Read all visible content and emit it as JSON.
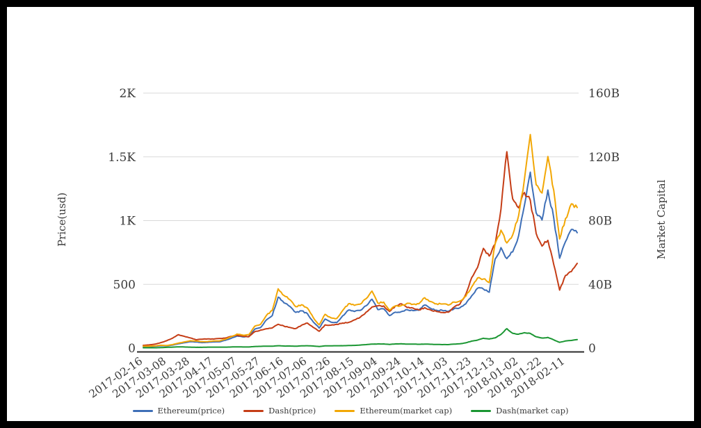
{
  "chart_data": {
    "type": "line",
    "title": "",
    "x_axis": {
      "tick_labels": [
        "2017-02-16",
        "2017-03-08",
        "2017-03-28",
        "2017-04-17",
        "2017-05-07",
        "2017-05-27",
        "2017-06-16",
        "2017-07-06",
        "2017-07-26",
        "2017-08-15",
        "2017-09-04",
        "2017-09-24",
        "2017-10-14",
        "2017-11-03",
        "2017-11-23",
        "2017-12-13",
        "2018-01-02",
        "2018-01-22",
        "2018-02-11"
      ],
      "label_rotation_deg": -35
    },
    "y_axis_left": {
      "label": "Price(usd)",
      "tick_values": [
        0,
        500,
        1000,
        1500,
        2000
      ],
      "tick_labels": [
        "0",
        "500",
        "1K",
        "1.5K",
        "2K"
      ],
      "range": [
        0,
        2000
      ]
    },
    "y_axis_right": {
      "label": "Market Capital",
      "tick_values": [
        0,
        40,
        80,
        120,
        160
      ],
      "tick_labels": [
        "0",
        "40B",
        "80B",
        "120B",
        "160B"
      ],
      "range": [
        0,
        160
      ]
    },
    "grid": true,
    "grid_color": "#d9d9d9",
    "axis_line_color": "#2b2b2b",
    "legend_position": "bottom",
    "dates": [
      "2017-02-16",
      "2017-02-21",
      "2017-02-26",
      "2017-03-03",
      "2017-03-08",
      "2017-03-13",
      "2017-03-18",
      "2017-03-23",
      "2017-03-28",
      "2017-04-02",
      "2017-04-07",
      "2017-04-12",
      "2017-04-17",
      "2017-04-22",
      "2017-04-27",
      "2017-05-02",
      "2017-05-07",
      "2017-05-12",
      "2017-05-17",
      "2017-05-22",
      "2017-05-27",
      "2017-06-01",
      "2017-06-06",
      "2017-06-11",
      "2017-06-16",
      "2017-06-21",
      "2017-06-26",
      "2017-07-01",
      "2017-07-06",
      "2017-07-11",
      "2017-07-16",
      "2017-07-21",
      "2017-07-26",
      "2017-07-31",
      "2017-08-05",
      "2017-08-10",
      "2017-08-15",
      "2017-08-20",
      "2017-08-25",
      "2017-08-30",
      "2017-09-04",
      "2017-09-09",
      "2017-09-14",
      "2017-09-19",
      "2017-09-24",
      "2017-09-29",
      "2017-10-04",
      "2017-10-09",
      "2017-10-14",
      "2017-10-19",
      "2017-10-24",
      "2017-10-29",
      "2017-11-03",
      "2017-11-08",
      "2017-11-13",
      "2017-11-18",
      "2017-11-23",
      "2017-11-28",
      "2017-12-03",
      "2017-12-08",
      "2017-12-13",
      "2017-12-18",
      "2017-12-23",
      "2017-12-28",
      "2018-01-02",
      "2018-01-07",
      "2018-01-12",
      "2018-01-17",
      "2018-01-22",
      "2018-01-27",
      "2018-02-01",
      "2018-02-06",
      "2018-02-11",
      "2018-02-16",
      "2018-02-21"
    ],
    "series": [
      {
        "name": "Ethereum(price)",
        "axis": "left",
        "color": "#3e6fb7",
        "values": [
          13,
          12.6,
          14.8,
          19,
          17.5,
          24,
          34,
          42,
          50,
          48,
          43,
          45,
          49,
          49,
          61,
          77,
          95,
          88,
          91,
          148,
          161,
          221,
          255,
          400,
          355,
          327,
          280,
          292,
          270,
          205,
          157,
          228,
          204,
          200,
          253,
          298,
          287,
          296,
          332,
          383,
          302,
          308,
          255,
          282,
          286,
          301,
          294,
          297,
          338,
          312,
          297,
          296,
          288,
          309,
          316,
          347,
          410,
          470,
          463,
          438,
          698,
          788,
          702,
          755,
          880,
          1120,
          1380,
          1060,
          1005,
          1240,
          1020,
          705,
          835,
          930,
          905
        ]
      },
      {
        "name": "Dash(price)",
        "axis": "left",
        "color": "#c53d16",
        "values": [
          22,
          25,
          31,
          43,
          58,
          78,
          105,
          92,
          80,
          65,
          70,
          72,
          71,
          76,
          79,
          92,
          100,
          94,
          89,
          128,
          141,
          152,
          158,
          187,
          172,
          162,
          153,
          180,
          196,
          162,
          132,
          182,
          180,
          186,
          196,
          201,
          221,
          242,
          282,
          322,
          331,
          330,
          288,
          331,
          347,
          318,
          314,
          300,
          317,
          299,
          287,
          279,
          281,
          322,
          345,
          422,
          552,
          632,
          782,
          722,
          815,
          1090,
          1540,
          1170,
          1100,
          1220,
          1160,
          900,
          800,
          845,
          655,
          455,
          570,
          600,
          665
        ]
      },
      {
        "name": "Ethereum(market cap)",
        "axis": "right",
        "color": "#f2a705",
        "values": [
          1.2,
          1.2,
          1.4,
          1.8,
          1.6,
          2.2,
          3.1,
          3.9,
          4.6,
          4.4,
          4,
          4.1,
          4.5,
          4.5,
          5.6,
          7.1,
          8.8,
          8.1,
          8.4,
          13.7,
          14.9,
          20.5,
          23.7,
          37.2,
          33,
          30.4,
          26,
          27.2,
          25.1,
          19.1,
          14.6,
          21.2,
          19,
          18.6,
          23.6,
          27.8,
          26.8,
          27.6,
          31,
          35.8,
          28.2,
          28.8,
          23.8,
          26.4,
          26.7,
          28.1,
          27.5,
          27.8,
          31.6,
          29.2,
          27.8,
          27.7,
          27,
          28.9,
          29.6,
          32.5,
          38.4,
          44,
          43.4,
          41.1,
          65.5,
          74,
          66,
          71,
          83,
          106,
          134,
          102.5,
          97.3,
          120.2,
          99,
          68.5,
          81.2,
          90.5,
          88.2
        ]
      },
      {
        "name": "Dash(market cap)",
        "axis": "right",
        "color": "#1a9632",
        "values": [
          0.2,
          0.2,
          0.2,
          0.3,
          0.5,
          0.6,
          0.8,
          0.7,
          0.6,
          0.5,
          0.5,
          0.6,
          0.6,
          0.6,
          0.6,
          0.7,
          0.8,
          0.7,
          0.7,
          1,
          1.1,
          1.2,
          1.2,
          1.5,
          1.3,
          1.3,
          1.2,
          1.4,
          1.5,
          1.3,
          1,
          1.4,
          1.4,
          1.5,
          1.5,
          1.6,
          1.7,
          1.9,
          2.2,
          2.5,
          2.6,
          2.6,
          2.3,
          2.6,
          2.7,
          2.5,
          2.5,
          2.4,
          2.5,
          2.4,
          2.3,
          2.2,
          2.2,
          2.5,
          2.7,
          3.3,
          4.4,
          5,
          6.2,
          5.7,
          6.4,
          8.6,
          12.2,
          9.3,
          8.7,
          9.7,
          9.2,
          7.1,
          6.3,
          6.7,
          5.2,
          3.6,
          4.5,
          4.8,
          5.3
        ]
      }
    ]
  }
}
